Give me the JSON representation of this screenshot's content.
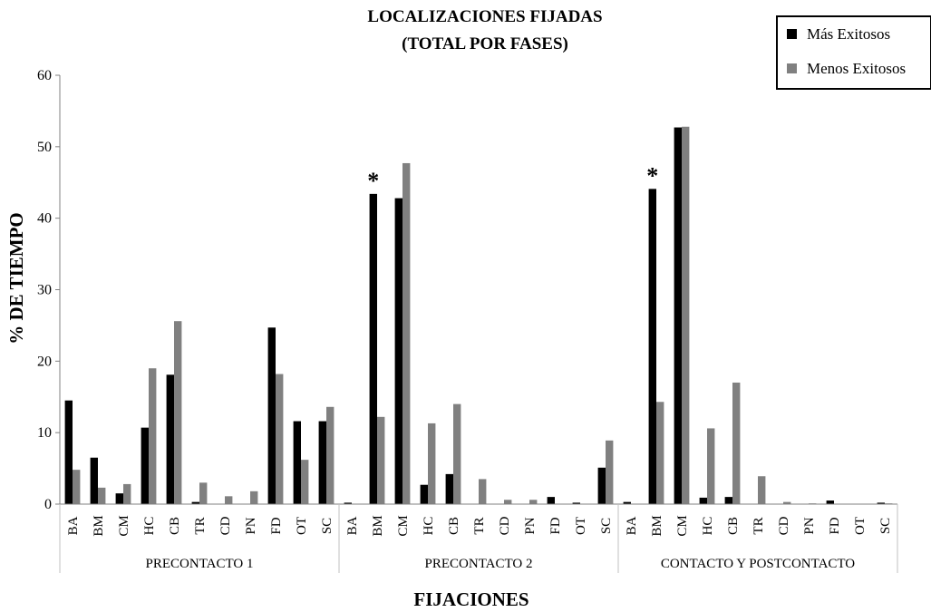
{
  "chart_data": {
    "type": "bar",
    "title_line1": "LOCALIZACIONES FIJADAS",
    "title_line2": "(TOTAL POR FASES)",
    "xlabel": "FIJACIONES",
    "ylabel": "% DE TIEMPO",
    "ylim": [
      0,
      60
    ],
    "yticks": [
      0,
      10,
      20,
      30,
      40,
      50,
      60
    ],
    "legend_position": "top-right",
    "colors": {
      "Más Exitosos": "#000000",
      "Menos Exitosos": "#808080"
    },
    "groups": [
      {
        "name": "PRECONTACTO 1",
        "categories": [
          "BA",
          "BM",
          "CM",
          "HC",
          "CB",
          "TR",
          "CD",
          "PN",
          "FD",
          "OT",
          "SC"
        ],
        "series": [
          {
            "name": "Más Exitosos",
            "values": [
              14.5,
              6.5,
              1.5,
              10.7,
              18.1,
              0.3,
              0,
              0,
              24.7,
              11.6,
              11.6
            ]
          },
          {
            "name": "Menos Exitosos",
            "values": [
              4.8,
              2.3,
              2.8,
              19.0,
              25.6,
              3.0,
              1.1,
              1.8,
              18.2,
              6.2,
              13.6
            ]
          }
        ],
        "annotations": []
      },
      {
        "name": "PRECONTACTO 2",
        "categories": [
          "BA",
          "BM",
          "CM",
          "HC",
          "CB",
          "TR",
          "CD",
          "PN",
          "FD",
          "OT",
          "SC"
        ],
        "series": [
          {
            "name": "Más Exitosos",
            "values": [
              0.2,
              43.4,
              42.8,
              2.7,
              4.2,
              0,
              0,
              0,
              1.0,
              0.2,
              5.1
            ]
          },
          {
            "name": "Menos Exitosos",
            "values": [
              0,
              12.2,
              47.7,
              11.3,
              14.0,
              3.5,
              0.6,
              0.6,
              0,
              0,
              8.9
            ]
          }
        ],
        "annotations": [
          {
            "category": "BM",
            "text": "*"
          }
        ]
      },
      {
        "name": "CONTACTO Y POSTCONTACTO",
        "categories": [
          "BA",
          "BM",
          "CM",
          "HC",
          "CB",
          "TR",
          "CD",
          "PN",
          "FD",
          "OT",
          "SC"
        ],
        "series": [
          {
            "name": "Más Exitosos",
            "values": [
              0.3,
              44.1,
              52.7,
              0.9,
              1.0,
              0,
              0,
              0,
              0.5,
              0,
              0.2
            ]
          },
          {
            "name": "Menos Exitosos",
            "values": [
              0,
              14.3,
              52.8,
              10.6,
              17.0,
              3.9,
              0.3,
              0.1,
              0,
              0,
              0.1
            ]
          }
        ],
        "annotations": [
          {
            "category": "BM",
            "text": "*"
          }
        ]
      }
    ]
  }
}
